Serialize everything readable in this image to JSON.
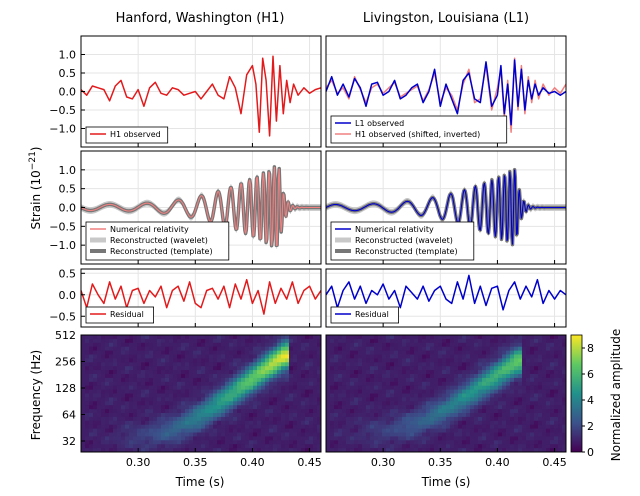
{
  "figure": {
    "titles": {
      "left": "Hanford, Washington (H1)",
      "right": "Livingston, Louisiana (L1)"
    },
    "ylabel_strain": "Strain (10",
    "ylabel_strain_exp": "−21",
    "ylabel_strain_close": ")",
    "ylabel_freq": "Frequency (Hz)",
    "xlabel": "Time (s)",
    "colorbar_label": "Normalized amplitude"
  },
  "chart_data": [
    {
      "type": "line",
      "panel": "observed",
      "column": "H1",
      "ylim": [
        -1.5,
        1.5
      ],
      "yticks": [
        "1.0",
        "0.5",
        "0.0",
        "−0.5",
        "−1.0"
      ],
      "ytick_values": [
        1.0,
        0.5,
        0.0,
        -0.5,
        -1.0
      ],
      "xlim": [
        0.25,
        0.46
      ],
      "grid": true,
      "legend_position": "bottom-left",
      "series": [
        {
          "name": "H1 observed",
          "color": "#e31a1c",
          "x": [
            0.25,
            0.255,
            0.26,
            0.265,
            0.27,
            0.275,
            0.28,
            0.285,
            0.29,
            0.295,
            0.3,
            0.305,
            0.31,
            0.315,
            0.32,
            0.325,
            0.33,
            0.335,
            0.34,
            0.345,
            0.35,
            0.355,
            0.36,
            0.365,
            0.37,
            0.375,
            0.38,
            0.385,
            0.39,
            0.395,
            0.4,
            0.403,
            0.406,
            0.409,
            0.412,
            0.415,
            0.418,
            0.421,
            0.424,
            0.427,
            0.43,
            0.433,
            0.436,
            0.44,
            0.445,
            0.45,
            0.455,
            0.46
          ],
          "y": [
            0.05,
            -0.1,
            0.15,
            0.1,
            0.05,
            -0.25,
            0.15,
            0.3,
            -0.15,
            -0.2,
            0.05,
            -0.4,
            0.1,
            0.25,
            -0.05,
            -0.1,
            0.1,
            0.05,
            -0.1,
            -0.05,
            0.0,
            -0.2,
            0.0,
            0.2,
            -0.1,
            -0.2,
            0.4,
            0.1,
            -0.6,
            0.45,
            0.7,
            0.2,
            -1.1,
            0.9,
            0.3,
            -1.2,
            0.95,
            -0.8,
            0.7,
            -0.6,
            0.3,
            -0.3,
            0.2,
            -0.1,
            0.1,
            -0.05,
            0.05,
            0.1
          ]
        }
      ]
    },
    {
      "type": "line",
      "panel": "observed",
      "column": "L1",
      "ylim": [
        -1.5,
        1.5
      ],
      "xlim": [
        0.25,
        0.46
      ],
      "grid": true,
      "legend_position": "bottom-left",
      "series": [
        {
          "name": "L1 observed",
          "color": "#0000cc",
          "x": [
            0.25,
            0.255,
            0.26,
            0.265,
            0.27,
            0.275,
            0.28,
            0.285,
            0.29,
            0.295,
            0.3,
            0.305,
            0.31,
            0.315,
            0.32,
            0.325,
            0.33,
            0.335,
            0.34,
            0.345,
            0.35,
            0.355,
            0.36,
            0.365,
            0.37,
            0.375,
            0.38,
            0.385,
            0.39,
            0.395,
            0.4,
            0.403,
            0.406,
            0.409,
            0.412,
            0.415,
            0.418,
            0.421,
            0.424,
            0.427,
            0.43,
            0.433,
            0.436,
            0.44,
            0.445,
            0.45,
            0.455,
            0.46
          ],
          "y": [
            0.0,
            0.4,
            -0.1,
            0.2,
            -0.15,
            0.35,
            0.1,
            -0.4,
            0.2,
            0.25,
            -0.1,
            0.0,
            0.3,
            -0.2,
            -0.1,
            0.1,
            0.2,
            -0.3,
            0.0,
            0.6,
            -0.4,
            0.2,
            -0.2,
            -0.6,
            0.3,
            0.5,
            -0.2,
            -0.3,
            0.8,
            -0.4,
            -0.1,
            0.7,
            -0.6,
            0.2,
            -0.9,
            0.85,
            -0.4,
            0.6,
            -0.5,
            0.3,
            -0.2,
            0.2,
            -0.1,
            0.1,
            -0.05,
            0.0,
            -0.1,
            0.0
          ]
        },
        {
          "name": "H1 observed (shifted, inverted)",
          "color": "#f08080",
          "x": [
            0.25,
            0.255,
            0.26,
            0.265,
            0.27,
            0.275,
            0.28,
            0.285,
            0.29,
            0.295,
            0.3,
            0.305,
            0.31,
            0.315,
            0.32,
            0.325,
            0.33,
            0.335,
            0.34,
            0.345,
            0.35,
            0.355,
            0.36,
            0.365,
            0.37,
            0.375,
            0.38,
            0.385,
            0.39,
            0.395,
            0.4,
            0.403,
            0.406,
            0.409,
            0.412,
            0.415,
            0.418,
            0.421,
            0.424,
            0.427,
            0.43,
            0.433,
            0.436,
            0.44,
            0.445,
            0.45,
            0.455,
            0.46
          ],
          "y": [
            0.1,
            0.3,
            -0.05,
            0.1,
            -0.2,
            0.4,
            0.05,
            -0.3,
            0.1,
            0.2,
            -0.05,
            0.1,
            0.25,
            -0.15,
            -0.05,
            0.05,
            0.15,
            -0.25,
            0.05,
            0.5,
            -0.3,
            0.1,
            -0.1,
            -0.5,
            0.2,
            0.6,
            -0.3,
            -0.2,
            0.7,
            -0.5,
            0.1,
            0.6,
            -0.7,
            0.3,
            -1.1,
            0.9,
            -0.5,
            0.7,
            -0.6,
            0.4,
            -0.3,
            0.3,
            -0.2,
            0.2,
            -0.1,
            0.1,
            -0.05,
            0.2
          ]
        }
      ]
    },
    {
      "type": "line",
      "panel": "model",
      "column": "H1",
      "ylim": [
        -1.5,
        1.5
      ],
      "yticks": [
        "1.0",
        "0.5",
        "0.0",
        "−0.5",
        "−1.0"
      ],
      "ytick_values": [
        1.0,
        0.5,
        0.0,
        -0.5,
        -1.0
      ],
      "xlim": [
        0.25,
        0.46
      ],
      "grid": true,
      "legend_position": "bottom-left",
      "waveform": {
        "t_merger": 0.423,
        "f0": 30,
        "f_peak": 250,
        "amp0": 0.08,
        "amp_peak": 1.15,
        "phase": 0.0,
        "ringdown": 0.004
      },
      "series": [
        {
          "name": "Numerical relativity",
          "color": "#f08080",
          "style": "thin"
        },
        {
          "name": "Reconstructed (wavelet)",
          "color": "#c8c8c8",
          "style": "band"
        },
        {
          "name": "Reconstructed (template)",
          "color": "#777777",
          "style": "thick"
        }
      ]
    },
    {
      "type": "line",
      "panel": "model",
      "column": "L1",
      "ylim": [
        -1.5,
        1.5
      ],
      "xlim": [
        0.25,
        0.46
      ],
      "grid": true,
      "legend_position": "bottom-left",
      "waveform": {
        "t_merger": 0.416,
        "f0": 30,
        "f_peak": 250,
        "amp0": 0.08,
        "amp_peak": 1.05,
        "phase": 3.14159,
        "ringdown": 0.004
      },
      "series": [
        {
          "name": "Numerical relativity",
          "color": "#0000cc",
          "style": "thin"
        },
        {
          "name": "Reconstructed (wavelet)",
          "color": "#c8c8c8",
          "style": "band"
        },
        {
          "name": "Reconstructed (template)",
          "color": "#777777",
          "style": "thick"
        }
      ]
    },
    {
      "type": "line",
      "panel": "residual",
      "column": "H1",
      "ylim": [
        -0.75,
        0.6
      ],
      "yticks": [
        "0.5",
        "0.0",
        "−0.5"
      ],
      "ytick_values": [
        0.5,
        0.0,
        -0.5
      ],
      "xlim": [
        0.25,
        0.46
      ],
      "grid": true,
      "legend_position": "bottom-left",
      "series": [
        {
          "name": "Residual",
          "color": "#e31a1c",
          "x": [
            0.25,
            0.255,
            0.26,
            0.265,
            0.27,
            0.275,
            0.28,
            0.285,
            0.29,
            0.295,
            0.3,
            0.305,
            0.31,
            0.315,
            0.32,
            0.325,
            0.33,
            0.335,
            0.34,
            0.345,
            0.35,
            0.355,
            0.36,
            0.365,
            0.37,
            0.375,
            0.38,
            0.385,
            0.39,
            0.395,
            0.4,
            0.405,
            0.41,
            0.415,
            0.42,
            0.425,
            0.43,
            0.435,
            0.44,
            0.445,
            0.45,
            0.455,
            0.46
          ],
          "y": [
            0.1,
            -0.3,
            0.25,
            0.0,
            -0.2,
            0.3,
            -0.1,
            0.2,
            -0.3,
            0.1,
            0.15,
            -0.2,
            0.1,
            -0.05,
            0.2,
            -0.3,
            0.1,
            0.2,
            -0.15,
            0.3,
            -0.2,
            -0.3,
            0.1,
            0.15,
            -0.1,
            0.2,
            -0.3,
            0.25,
            -0.1,
            0.35,
            -0.2,
            0.1,
            -0.45,
            0.3,
            -0.2,
            0.15,
            -0.1,
            0.3,
            -0.2,
            0.1,
            0.2,
            -0.1,
            0.1
          ]
        }
      ]
    },
    {
      "type": "line",
      "panel": "residual",
      "column": "L1",
      "ylim": [
        -0.75,
        0.6
      ],
      "xlim": [
        0.25,
        0.46
      ],
      "grid": true,
      "legend_position": "bottom-left",
      "series": [
        {
          "name": "Residual",
          "color": "#0000cc",
          "x": [
            0.25,
            0.255,
            0.26,
            0.265,
            0.27,
            0.275,
            0.28,
            0.285,
            0.29,
            0.295,
            0.3,
            0.305,
            0.31,
            0.315,
            0.32,
            0.325,
            0.33,
            0.335,
            0.34,
            0.345,
            0.35,
            0.355,
            0.36,
            0.365,
            0.37,
            0.375,
            0.38,
            0.385,
            0.39,
            0.395,
            0.4,
            0.405,
            0.41,
            0.415,
            0.42,
            0.425,
            0.43,
            0.435,
            0.44,
            0.445,
            0.45,
            0.455,
            0.46
          ],
          "y": [
            0.0,
            0.2,
            -0.3,
            0.1,
            0.3,
            -0.1,
            0.2,
            -0.2,
            0.1,
            0.0,
            0.25,
            -0.1,
            0.1,
            -0.3,
            0.2,
            0.05,
            -0.1,
            0.2,
            -0.15,
            0.1,
            0.2,
            -0.1,
            -0.2,
            0.3,
            -0.1,
            0.45,
            -0.2,
            0.2,
            -0.25,
            0.15,
            0.2,
            -0.35,
            0.1,
            0.3,
            -0.1,
            0.2,
            -0.05,
            0.35,
            -0.2,
            0.1,
            -0.1,
            0.1,
            0.0
          ]
        }
      ]
    },
    {
      "type": "heatmap",
      "panel": "spectrogram",
      "column": "H1",
      "xlim": [
        0.25,
        0.46
      ],
      "ylim_hz": [
        24,
        512
      ],
      "yscale": "log",
      "yticks": [
        "512",
        "256",
        "128",
        "64",
        "32"
      ],
      "ytick_values": [
        512,
        256,
        128,
        64,
        32
      ],
      "xticks": [
        "0.30",
        "0.35",
        "0.40",
        "0.45"
      ],
      "xtick_values": [
        0.3,
        0.35,
        0.4,
        0.45
      ],
      "colormap": "viridis",
      "vmin": 0,
      "vmax": 9,
      "peak_amplitude": 8,
      "chirp": {
        "t_merger": 0.428,
        "f0": 35,
        "f_peak": 300
      }
    },
    {
      "type": "heatmap",
      "panel": "spectrogram",
      "column": "L1",
      "xlim": [
        0.25,
        0.46
      ],
      "ylim_hz": [
        24,
        512
      ],
      "yscale": "log",
      "xticks": [
        "0.30",
        "0.35",
        "0.40",
        "0.45"
      ],
      "xtick_values": [
        0.3,
        0.35,
        0.4,
        0.45
      ],
      "colormap": "viridis",
      "vmin": 0,
      "vmax": 9,
      "peak_amplitude": 6,
      "chirp": {
        "t_merger": 0.418,
        "f0": 40,
        "f_peak": 260
      },
      "colorbar": {
        "ticks": [
          "8",
          "6",
          "4",
          "2",
          "0"
        ],
        "tick_values": [
          8,
          6,
          4,
          2,
          0
        ]
      }
    }
  ]
}
